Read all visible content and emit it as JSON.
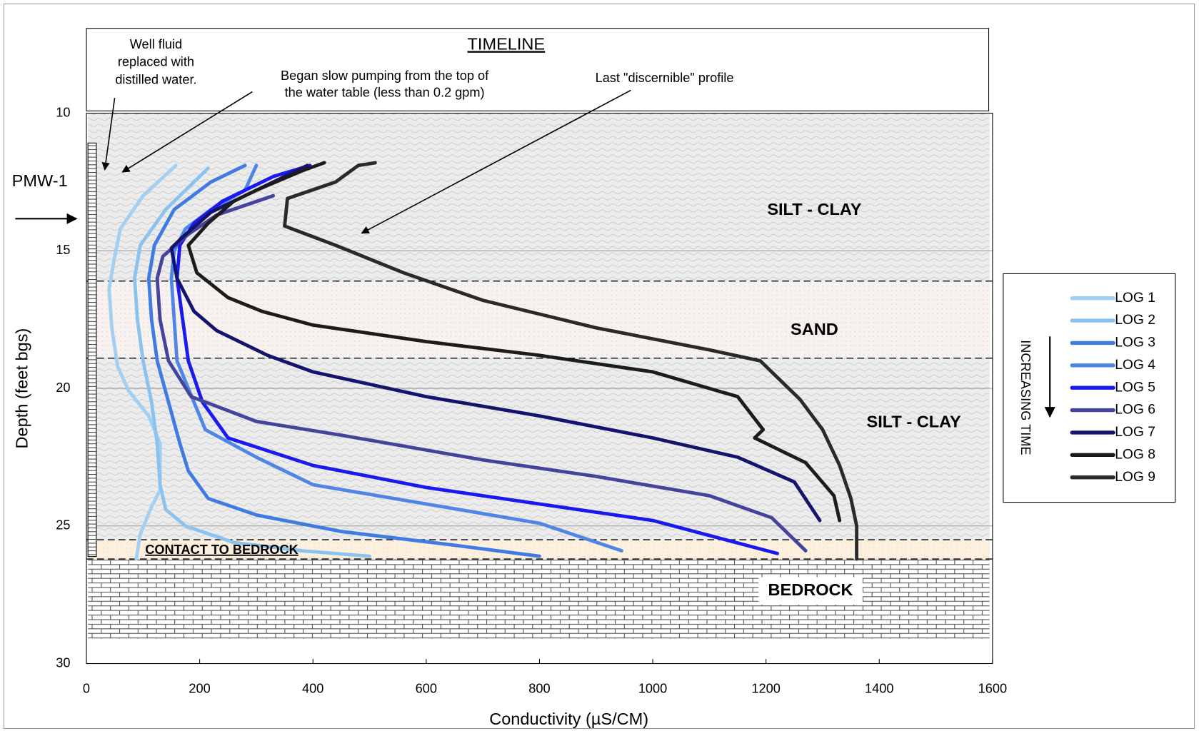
{
  "chart_data": {
    "type": "line",
    "title": "TIMELINE",
    "x_label": "Conductivity (µS/CM)",
    "y_label": "Depth (feet bgs)",
    "xlim": [
      0,
      1600
    ],
    "xticks": [
      0,
      200,
      400,
      600,
      800,
      1000,
      1200,
      1400,
      1600
    ],
    "ylim": [
      10,
      30
    ],
    "y_inverted": true,
    "yticks": [
      10,
      15,
      20,
      25,
      30
    ],
    "grid": true,
    "legend_position": "right",
    "legend_note": "INCREASING TIME",
    "well_id": "PMW-1",
    "annotations": [
      {
        "lines": [
          "Well fluid",
          "replaced with",
          "distilled water."
        ]
      },
      {
        "lines": [
          "Began slow pumping from the top of",
          "the water table (less than 0.2 gpm)"
        ]
      },
      {
        "lines": [
          "Last \"discernible\" profile"
        ]
      }
    ],
    "layers": [
      {
        "name": "SILT - CLAY",
        "top": 10,
        "bottom": 16.1
      },
      {
        "name": "SAND",
        "top": 16.1,
        "bottom": 18.9
      },
      {
        "name": "SILT - CLAY",
        "top": 18.9,
        "bottom": 25.5
      },
      {
        "name": "CONTACT TO BEDROCK",
        "top": 25.5,
        "bottom": 26.2
      },
      {
        "name": "BEDROCK",
        "top": 26.2,
        "bottom": 29.1
      }
    ],
    "series": [
      {
        "name": "LOG 1",
        "color": "#a3d0f2",
        "x": [
          158,
          100,
          60,
          50,
          40,
          45,
          55,
          75,
          110,
          130,
          130,
          115,
          95,
          88
        ],
        "values": [
          11.9,
          13.0,
          14.2,
          15.2,
          16.4,
          17.8,
          19.2,
          20.1,
          21,
          22,
          23.7,
          24.3,
          25.3,
          26.2
        ]
      },
      {
        "name": "LOG 2",
        "color": "#8cc2ee",
        "x": [
          215,
          140,
          95,
          85,
          90,
          100,
          115,
          125,
          130,
          140,
          175,
          260,
          380,
          500
        ],
        "values": [
          12,
          13.5,
          14.8,
          16,
          17.5,
          19,
          20.5,
          22,
          23.5,
          24.4,
          25,
          25.6,
          25.9,
          26.1
        ]
      },
      {
        "name": "LOG 3",
        "color": "#3f7be0",
        "x": [
          280,
          220,
          155,
          120,
          110,
          115,
          125,
          145,
          165,
          180,
          215,
          300,
          450,
          650,
          800
        ],
        "values": [
          11.9,
          12.5,
          13.5,
          14.8,
          16,
          17.5,
          19,
          20.5,
          22,
          23,
          24,
          24.6,
          25.2,
          25.7,
          26.1
        ]
      },
      {
        "name": "LOG 4",
        "color": "#4f86e6",
        "x": [
          300,
          280,
          220,
          175,
          155,
          150,
          155,
          160,
          180,
          210,
          300,
          400,
          600,
          800,
          945
        ],
        "values": [
          11.9,
          12.8,
          13.5,
          14.2,
          15,
          16,
          17.5,
          19,
          20,
          21.5,
          22.5,
          23.5,
          24.2,
          24.9,
          25.9
        ]
      },
      {
        "name": "LOG 5",
        "color": "#1a1aef",
        "x": [
          395,
          330,
          240,
          190,
          165,
          160,
          170,
          180,
          205,
          250,
          400,
          600,
          800,
          1000,
          1220
        ],
        "values": [
          11.9,
          12.3,
          13.2,
          14,
          14.8,
          16,
          17.5,
          19,
          20.5,
          21.8,
          22.8,
          23.6,
          24.2,
          24.8,
          26
        ]
      },
      {
        "name": "LOG 6",
        "color": "#45449d",
        "x": [
          330,
          230,
          180,
          135,
          125,
          130,
          145,
          185,
          300,
          450,
          700,
          900,
          1100,
          1210,
          1270
        ],
        "values": [
          13,
          13.7,
          14.4,
          15.2,
          16,
          17.5,
          19,
          20.3,
          21.2,
          21.7,
          22.6,
          23.2,
          23.9,
          24.7,
          25.9
        ]
      },
      {
        "name": "LOG 7",
        "color": "#14146e",
        "x": [
          390,
          300,
          220,
          170,
          150,
          160,
          190,
          230,
          320,
          400,
          600,
          800,
          1000,
          1150,
          1250,
          1295
        ],
        "values": [
          11.9,
          12.8,
          13.6,
          14.5,
          14.9,
          16,
          17.2,
          17.9,
          18.8,
          19.4,
          20.3,
          21,
          21.8,
          22.5,
          23.4,
          24.8
        ]
      },
      {
        "name": "LOG 8",
        "color": "#1c1c1c",
        "x": [
          420,
          380,
          300,
          260,
          215,
          180,
          195,
          250,
          310,
          400,
          600,
          800,
          1000,
          1150,
          1195,
          1180,
          1270,
          1320,
          1330
        ],
        "values": [
          11.8,
          12.1,
          12.8,
          13.2,
          14,
          14.8,
          15.8,
          16.7,
          17.2,
          17.7,
          18.3,
          18.8,
          19.4,
          20.3,
          21.5,
          21.8,
          22.7,
          23.9,
          24.8
        ]
      },
      {
        "name": "LOG 9",
        "color": "#2a2a2a",
        "x": [
          510,
          480,
          440,
          355,
          350,
          440,
          560,
          700,
          900,
          1100,
          1190,
          1260,
          1300,
          1330,
          1350,
          1360,
          1360
        ],
        "values": [
          11.8,
          11.9,
          12.5,
          13.1,
          14.1,
          14.8,
          15.8,
          16.8,
          17.8,
          18.6,
          19.0,
          20.4,
          21.5,
          22.8,
          24,
          25,
          26.2
        ]
      }
    ]
  }
}
